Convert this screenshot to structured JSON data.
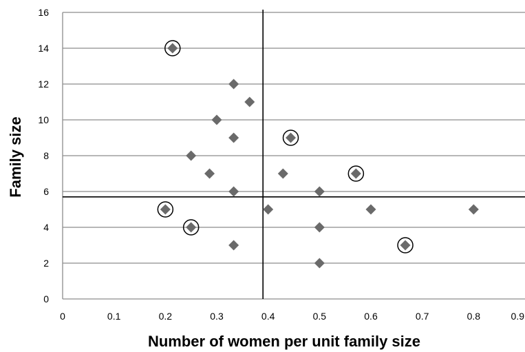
{
  "chart_data": {
    "type": "scatter",
    "xlabel": "Number  of women per unit family size",
    "ylabel": "Family size",
    "xlim": [
      0,
      0.9
    ],
    "ylim": [
      0,
      16
    ],
    "xticks": [
      "0",
      "0.1",
      "0.2",
      "0.3",
      "0.4",
      "0.5",
      "0.6",
      "0.7",
      "0.8",
      "0.9"
    ],
    "yticks": [
      "0",
      "2",
      "4",
      "6",
      "8",
      "10",
      "12",
      "14",
      "16"
    ],
    "grid": "horizontal",
    "marker_color": "#6a6a6a",
    "reference_lines": {
      "x": 0.39,
      "y": 5.7
    },
    "points": [
      {
        "x": 0.214,
        "y": 14,
        "circled": true
      },
      {
        "x": 0.333,
        "y": 12,
        "circled": false
      },
      {
        "x": 0.364,
        "y": 11,
        "circled": false
      },
      {
        "x": 0.3,
        "y": 10,
        "circled": false
      },
      {
        "x": 0.333,
        "y": 9,
        "circled": false
      },
      {
        "x": 0.444,
        "y": 9,
        "circled": true
      },
      {
        "x": 0.25,
        "y": 8,
        "circled": false
      },
      {
        "x": 0.286,
        "y": 7,
        "circled": false
      },
      {
        "x": 0.429,
        "y": 7,
        "circled": false
      },
      {
        "x": 0.571,
        "y": 7,
        "circled": true
      },
      {
        "x": 0.333,
        "y": 6,
        "circled": false
      },
      {
        "x": 0.5,
        "y": 6,
        "circled": false
      },
      {
        "x": 0.2,
        "y": 5,
        "circled": true
      },
      {
        "x": 0.4,
        "y": 5,
        "circled": false
      },
      {
        "x": 0.6,
        "y": 5,
        "circled": false
      },
      {
        "x": 0.8,
        "y": 5,
        "circled": false
      },
      {
        "x": 0.25,
        "y": 4,
        "circled": true
      },
      {
        "x": 0.5,
        "y": 4,
        "circled": false
      },
      {
        "x": 0.333,
        "y": 3,
        "circled": false
      },
      {
        "x": 0.667,
        "y": 3,
        "circled": true
      },
      {
        "x": 0.5,
        "y": 2,
        "circled": false
      }
    ]
  }
}
